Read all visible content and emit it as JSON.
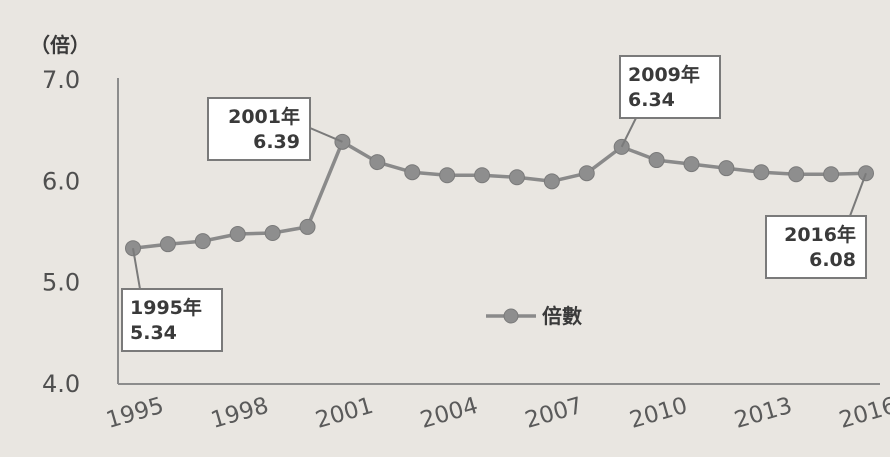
{
  "chart_data": {
    "type": "line",
    "title": "",
    "xlabel": "",
    "ylabel": "（倍）",
    "ylim": [
      4.0,
      7.0
    ],
    "yticks": [
      "4.0",
      "5.0",
      "6.0",
      "7.0"
    ],
    "xtick_labels": [
      "1995",
      "1998",
      "2001",
      "2004",
      "2007",
      "2010",
      "2013",
      "2016"
    ],
    "grid": false,
    "legend_position": "center",
    "series": [
      {
        "name": "倍數",
        "x": [
          1995,
          1996,
          1997,
          1998,
          1999,
          2000,
          2001,
          2002,
          2003,
          2004,
          2005,
          2006,
          2007,
          2008,
          2009,
          2010,
          2011,
          2012,
          2013,
          2014,
          2015,
          2016
        ],
        "values": [
          5.34,
          5.38,
          5.41,
          5.48,
          5.49,
          5.55,
          6.39,
          6.19,
          6.09,
          6.06,
          6.06,
          6.04,
          6.0,
          6.08,
          6.34,
          6.21,
          6.17,
          6.13,
          6.09,
          6.07,
          6.07,
          6.08
        ]
      }
    ],
    "annotations": [
      {
        "line1": "1995年",
        "line2": "5.34",
        "x": 1995,
        "y": 5.34
      },
      {
        "line1": "2001年",
        "line2": "6.39",
        "x": 2001,
        "y": 6.39
      },
      {
        "line1": "2009年",
        "line2": "6.34",
        "x": 2009,
        "y": 6.34
      },
      {
        "line1": "2016年",
        "line2": "6.08",
        "x": 2016,
        "y": 6.08
      }
    ]
  }
}
